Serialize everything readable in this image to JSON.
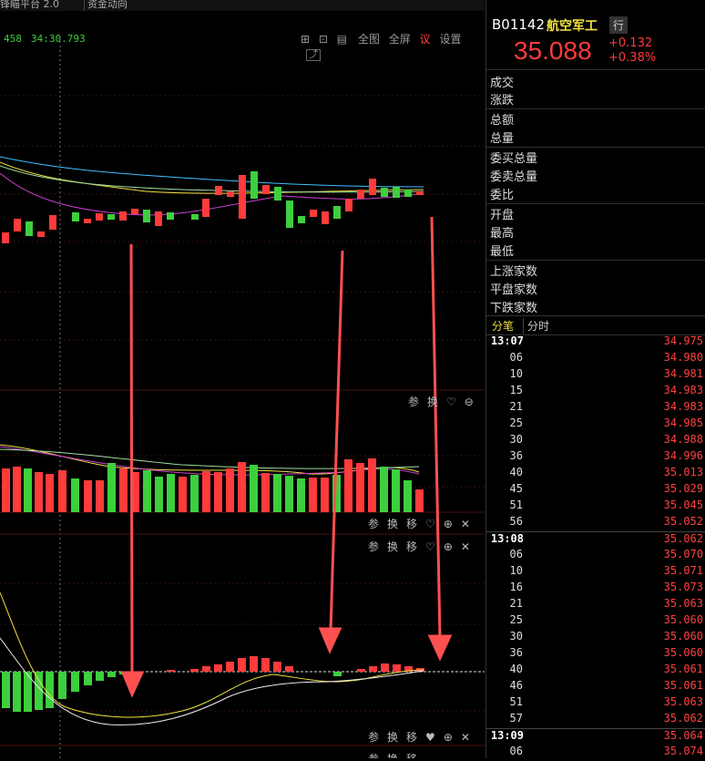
{
  "tabs": {
    "tab1": "锋瞄平台 2.0",
    "tab2": "资金动向"
  },
  "crosshair": {
    "value": "458",
    "time": "34:30.793"
  },
  "top_toolbar": {
    "btn1": "全图",
    "btn2": "全屏",
    "btn3": "设置"
  },
  "panel_buttons": {
    "param": "参",
    "swap": "换",
    "move": "移"
  },
  "quote": {
    "code": "B01142",
    "name": "航空军工",
    "badge": "行",
    "price": "35.088",
    "change": "+0.132",
    "change_pct": "+0.38%",
    "labels": [
      "成交",
      "涨跌",
      "总额",
      "总量",
      "委买总量",
      "委卖总量",
      "委比",
      "开盘",
      "最高",
      "最低",
      "上涨家数",
      "平盘家数",
      "下跌家数"
    ]
  },
  "tick_tabs": {
    "active": "分笔",
    "inactive": "分时"
  },
  "ticks": [
    {
      "time": "13:07",
      "price": "34.975",
      "bold": true
    },
    {
      "time": "06",
      "price": "34.980"
    },
    {
      "time": "10",
      "price": "34.981"
    },
    {
      "time": "15",
      "price": "34.983"
    },
    {
      "time": "21",
      "price": "34.983"
    },
    {
      "time": "25",
      "price": "34.985"
    },
    {
      "time": "30",
      "price": "34.988"
    },
    {
      "time": "36",
      "price": "34.996"
    },
    {
      "time": "40",
      "price": "35.013"
    },
    {
      "time": "45",
      "price": "35.029"
    },
    {
      "time": "51",
      "price": "35.045"
    },
    {
      "time": "56",
      "price": "35.052"
    },
    {
      "time": "13:08",
      "price": "35.062",
      "bold": true
    },
    {
      "time": "06",
      "price": "35.070"
    },
    {
      "time": "10",
      "price": "35.071"
    },
    {
      "time": "16",
      "price": "35.073"
    },
    {
      "time": "21",
      "price": "35.063"
    },
    {
      "time": "25",
      "price": "35.060"
    },
    {
      "time": "30",
      "price": "35.060"
    },
    {
      "time": "36",
      "price": "35.060"
    },
    {
      "time": "40",
      "price": "35.061"
    },
    {
      "time": "46",
      "price": "35.061"
    },
    {
      "time": "51",
      "price": "35.063"
    },
    {
      "time": "57",
      "price": "35.062"
    },
    {
      "time": "13:09",
      "price": "35.064",
      "bold": true
    },
    {
      "time": "06",
      "price": "35.074"
    }
  ],
  "colors": {
    "up": "#ff3b3b",
    "down": "#3ecf3e",
    "bg": "#000000",
    "arrow": "#ff5050",
    "yellow": "#f0e040"
  }
}
